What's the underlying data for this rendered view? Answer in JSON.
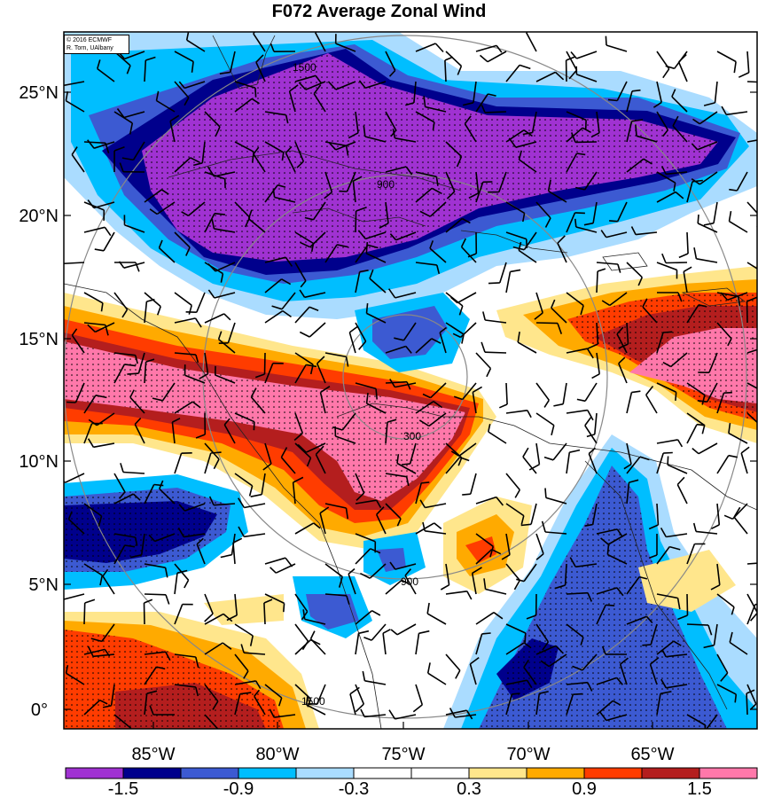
{
  "title": "F072 Average Zonal Wind",
  "credit": {
    "line1": "© 2016 ECMWF",
    "line2": "R. Torn, UAlbany"
  },
  "lat_labels": [
    "25°N",
    "20°N",
    "15°N",
    "10°N",
    "5°N",
    "0°"
  ],
  "lon_labels": [
    "85°W",
    "80°W",
    "75°W",
    "70°W",
    "65°W"
  ],
  "range_rings": [
    "300",
    "900",
    "1500"
  ],
  "colorbar": {
    "colors": [
      "#a032d2",
      "#00008c",
      "#3c5ad2",
      "#00beff",
      "#aadcff",
      "#ffffff",
      "#ffffff",
      "#ffe68c",
      "#ffaa00",
      "#ff3c00",
      "#b41e1e",
      "#ff78aa"
    ],
    "labels": [
      "-1.5",
      "-0.9",
      "-0.3",
      "0.3",
      "0.9",
      "1.5"
    ]
  },
  "palette": {
    "neg3": "#a032d2",
    "neg2": "#00008c",
    "neg1": "#3c5ad2",
    "neg05": "#00beff",
    "neg0": "#aadcff",
    "pos0": "#ffe68c",
    "pos05": "#ffaa00",
    "pos1": "#ff3c00",
    "pos2": "#b41e1e",
    "pos3": "#ff78aa"
  }
}
